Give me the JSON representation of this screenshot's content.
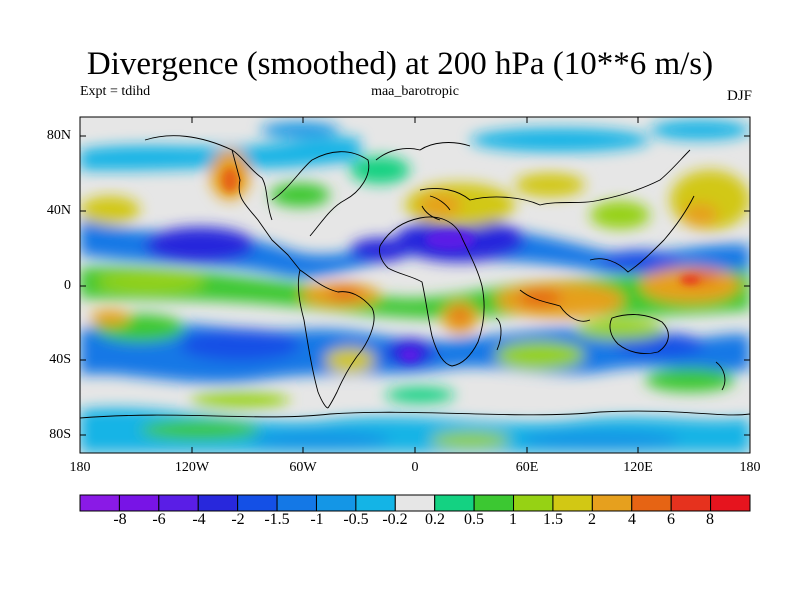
{
  "title": "Divergence (smoothed) at 200 hPa (10**6 m/s)",
  "expt_label": "Expt = tdihd",
  "model_label": "maa_barotropic",
  "season_label": "DJF",
  "map": {
    "projection": "cylindrical equidistant",
    "lon_range": [
      -180,
      180
    ],
    "lat_range": [
      -90,
      90
    ],
    "lat_ticks": [
      {
        "value": 80,
        "label": "80N"
      },
      {
        "value": 40,
        "label": "40N"
      },
      {
        "value": 0,
        "label": "0"
      },
      {
        "value": -40,
        "label": "40S"
      },
      {
        "value": -80,
        "label": "80S"
      }
    ],
    "lon_ticks": [
      {
        "value": -180,
        "label": "180"
      },
      {
        "value": -120,
        "label": "120W"
      },
      {
        "value": -60,
        "label": "60W"
      },
      {
        "value": 0,
        "label": "0"
      },
      {
        "value": 60,
        "label": "60E"
      },
      {
        "value": 120,
        "label": "120E"
      },
      {
        "value": 180,
        "label": "180"
      }
    ],
    "background_color": "#e6e6e6",
    "coastline_color": "#000000"
  },
  "colorbar": {
    "labels": [
      "-8",
      "-6",
      "-4",
      "-2",
      "-1.5",
      "-1",
      "-0.5",
      "-0.2",
      "0.2",
      "0.5",
      "1",
      "1.5",
      "2",
      "4",
      "6",
      "8"
    ],
    "colors": [
      "#8a1ae6",
      "#7814e6",
      "#5a1ee6",
      "#2828dc",
      "#1450e6",
      "#1478e6",
      "#1496e6",
      "#14b4e6",
      "#e6e6e6",
      "#14d282",
      "#3cc832",
      "#96d214",
      "#d2c814",
      "#e6a01e",
      "#e66414",
      "#e6321e",
      "#e6141e"
    ]
  }
}
